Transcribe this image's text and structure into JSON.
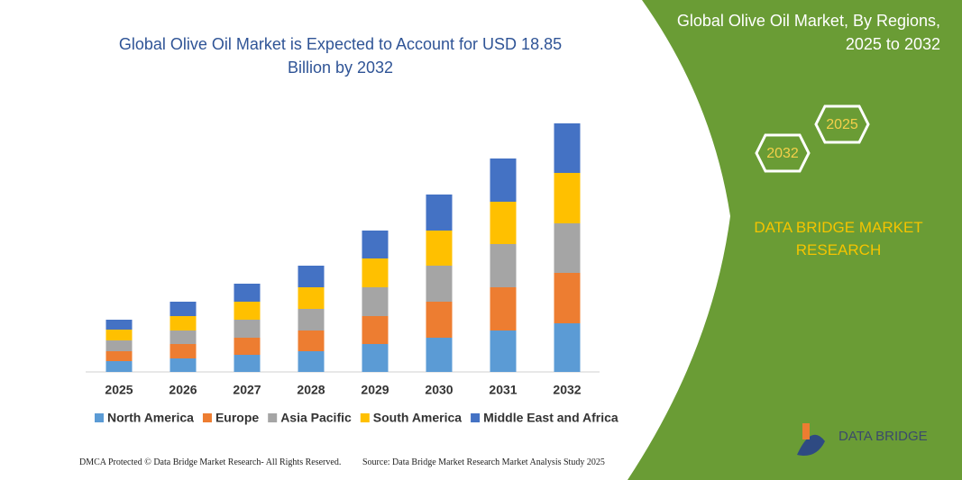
{
  "chart_data": {
    "type": "stacked_bar",
    "title": "Global Olive Oil Market is Expected to Account for USD 18.85 Billion by 2032",
    "categories": [
      "2025",
      "2026",
      "2027",
      "2028",
      "2029",
      "2030",
      "2031",
      "2032"
    ],
    "series": [
      {
        "name": "North America",
        "color": "#5b9bd5",
        "values": [
          12,
          15,
          19,
          23,
          31,
          38,
          46,
          54
        ]
      },
      {
        "name": "Europe",
        "color": "#ed7d31",
        "values": [
          11,
          16,
          19,
          23,
          31,
          40,
          48,
          56
        ]
      },
      {
        "name": "Asia Pacific",
        "color": "#a5a5a5",
        "values": [
          12,
          15,
          20,
          24,
          32,
          40,
          48,
          55
        ]
      },
      {
        "name": "South America",
        "color": "#ffc000",
        "values": [
          12,
          16,
          20,
          24,
          32,
          39,
          47,
          56
        ]
      },
      {
        "name": "Middle East and Africa",
        "color": "#4472c4",
        "values": [
          11,
          16,
          20,
          24,
          31,
          40,
          48,
          55
        ]
      }
    ]
  },
  "panel": {
    "title": "Global Olive Oil Market, By Regions, 2025 to 2032",
    "hex_small": "2025",
    "hex_large": "2032",
    "brand": "DATA BRIDGE MARKET RESEARCH"
  },
  "footer": {
    "left": "DMCA Protected © Data Bridge Market Research- All Rights Reserved.",
    "right": "Source: Data Bridge Market Research  Market Analysis Study 2025"
  },
  "logo": "DATA BRIDGE"
}
